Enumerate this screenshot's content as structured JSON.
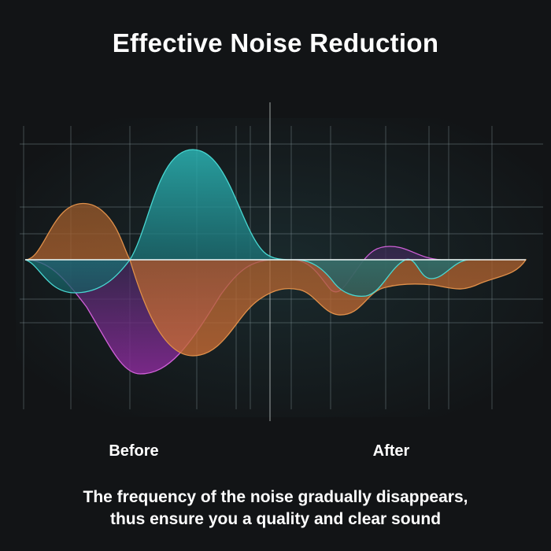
{
  "title": "Effective Noise Reduction",
  "labels": {
    "before": "Before",
    "after": "After"
  },
  "caption": {
    "line1": "The frequency of the noise gradually disappears,",
    "line2": "thus ensure you a quality and clear sound"
  },
  "colors": {
    "background": "#121416",
    "orange": "#d9853a",
    "teal": "#35c7c4",
    "purple": "#c54fd0",
    "grid": "#8a9a9e"
  }
}
